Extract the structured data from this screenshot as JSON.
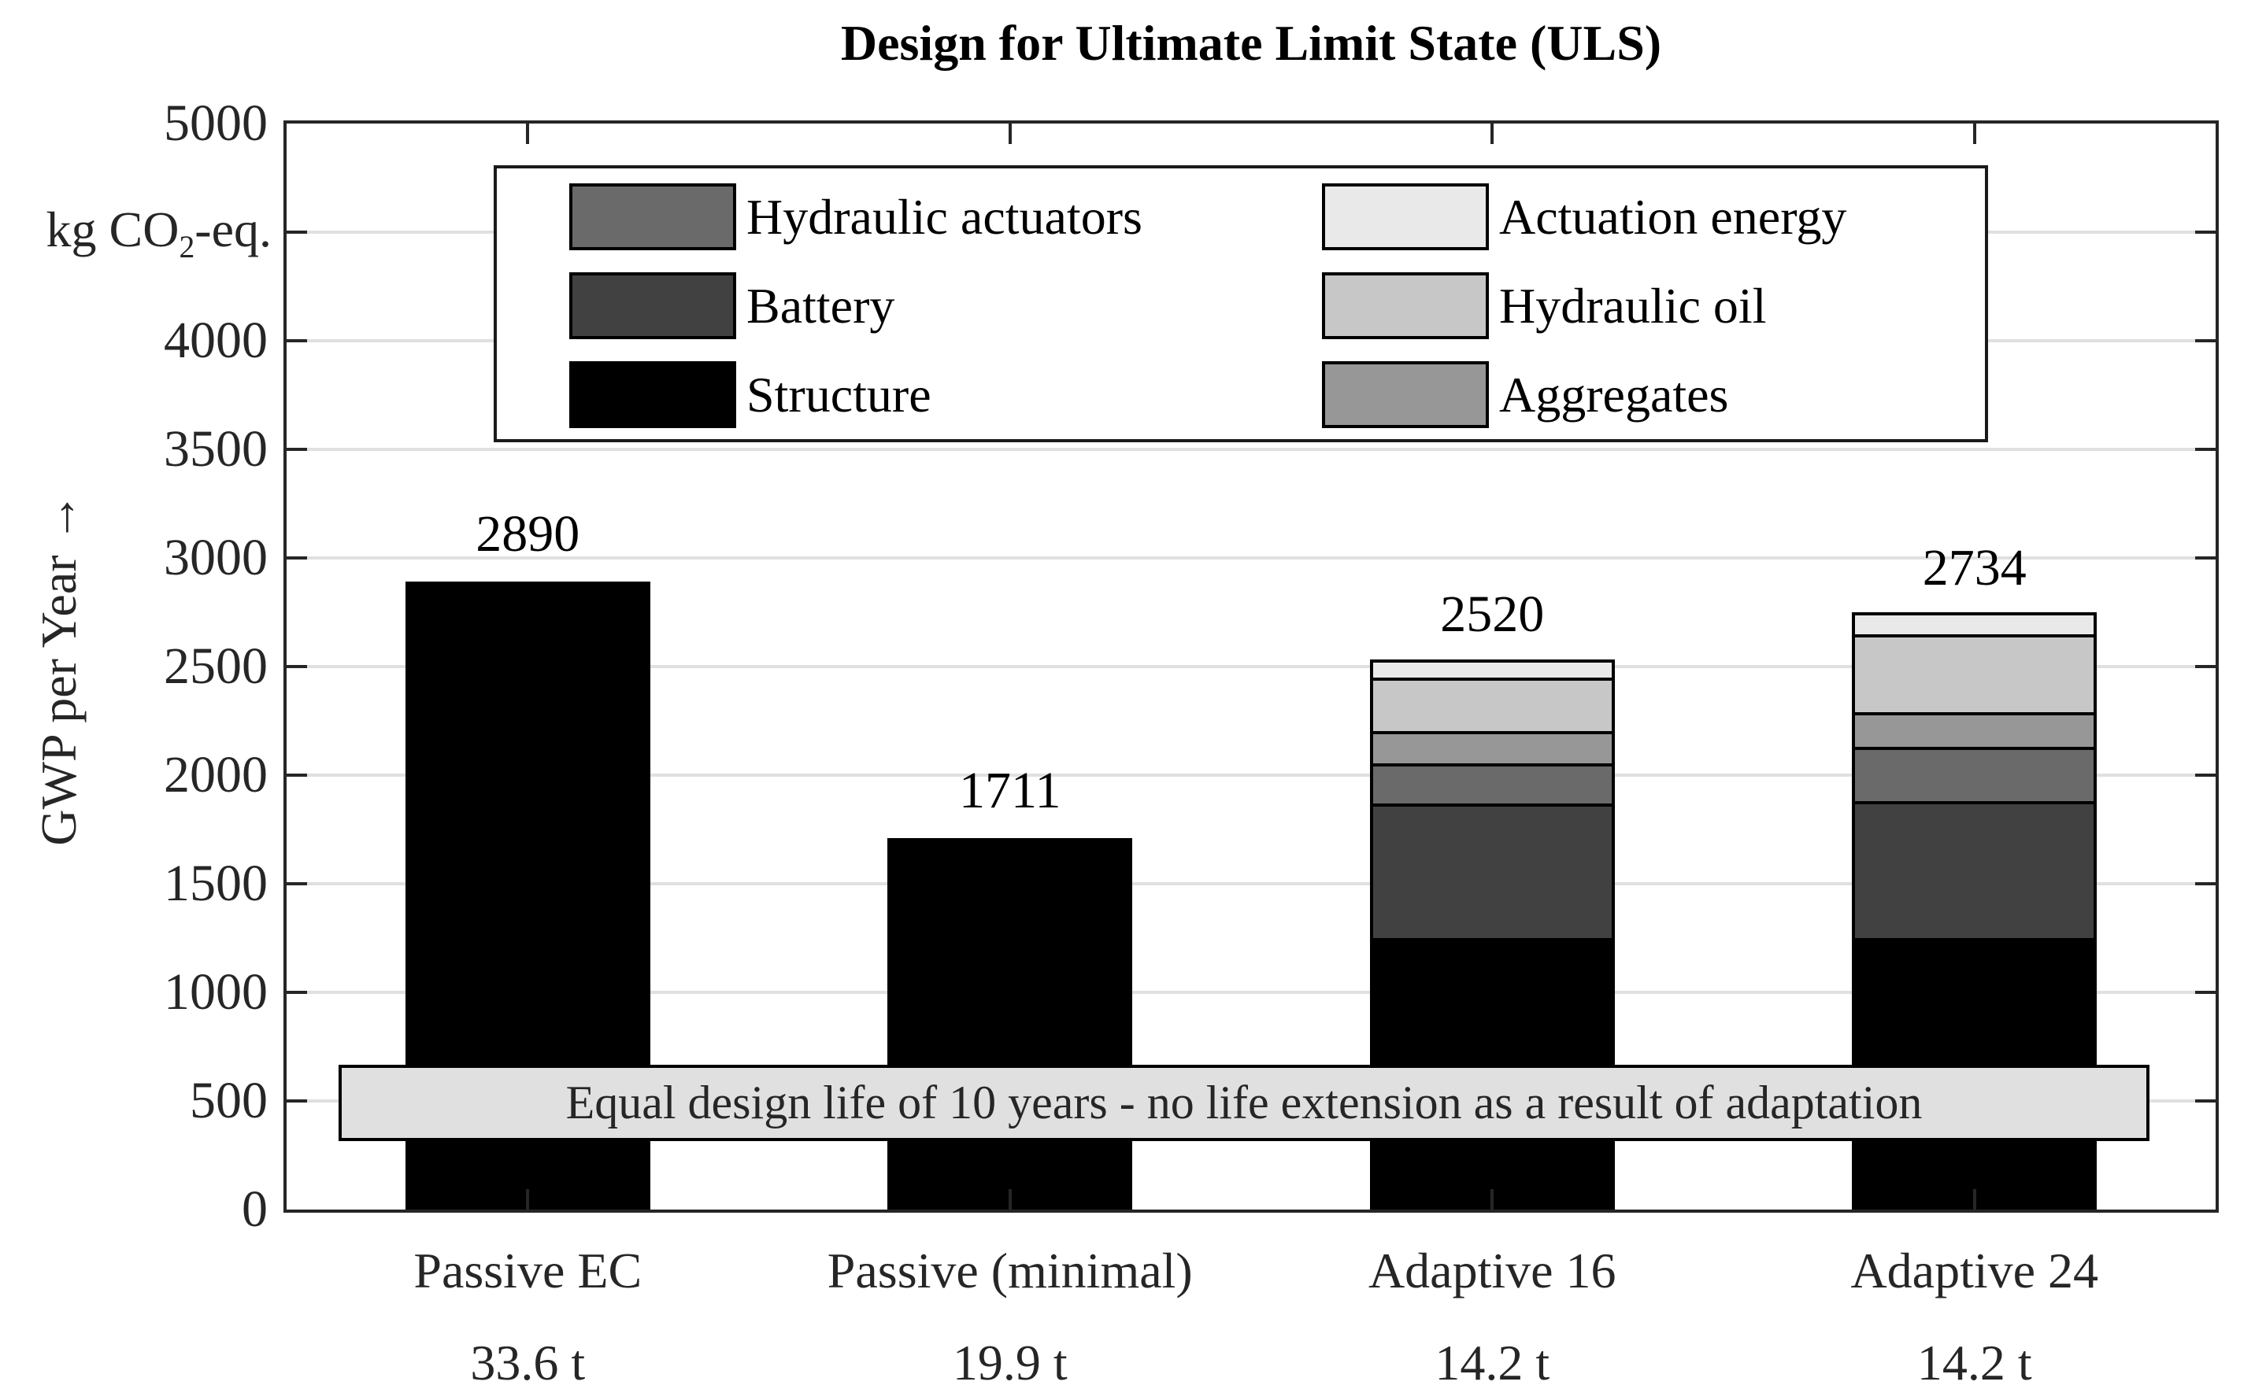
{
  "title": "Design for Ultimate Limit State (ULS)",
  "y_axis": {
    "unit_label": {
      "prefix": "kg CO",
      "sub": "2",
      "suffix": "-eq."
    },
    "axis_label": "GWP per Year",
    "axis_label_arrow": "→",
    "min": 0,
    "max": 5000,
    "tick_step": 500,
    "tick_labels": [
      "0",
      "500",
      "1000",
      "1500",
      "2000",
      "2500",
      "3000",
      "3500",
      "4000",
      "",
      "5000"
    ]
  },
  "chart_data": {
    "type": "bar",
    "stacked": true,
    "title": "Design for Ultimate Limit State (ULS)",
    "ylabel": "GWP per Year (kg CO2-eq.)",
    "ylim": [
      0,
      5000
    ],
    "grid": true,
    "legend_position": "top-inside",
    "categories": [
      "Passive EC",
      "Passive (minimal)",
      "Adaptive 16",
      "Adaptive 24"
    ],
    "category_sublabels": [
      "33.6 t",
      "19.9 t",
      "14.2 t",
      "14.2 t"
    ],
    "totals": [
      "2890",
      "1711",
      "2520",
      "2734"
    ],
    "series": [
      {
        "name": "Structure",
        "color": "#000000",
        "values": [
          2890,
          1711,
          1235,
          1235
        ]
      },
      {
        "name": "Battery",
        "color": "#414141",
        "values": [
          0,
          0,
          620,
          630
        ]
      },
      {
        "name": "Hydraulic actuators",
        "color": "#6a6a6a",
        "values": [
          0,
          0,
          185,
          250
        ]
      },
      {
        "name": "Aggregates",
        "color": "#979797",
        "values": [
          0,
          0,
          150,
          160
        ]
      },
      {
        "name": "Hydraulic oil",
        "color": "#c7c7c7",
        "values": [
          0,
          0,
          245,
          360
        ]
      },
      {
        "name": "Actuation energy",
        "color": "#e9e9e9",
        "values": [
          0,
          0,
          85,
          99
        ]
      }
    ],
    "annotation": "Equal design life of 10 years - no life extension as a result of adaptation"
  },
  "legend": {
    "columns": [
      [
        "Hydraulic actuators",
        "Battery",
        "Structure"
      ],
      [
        "Actuation energy",
        "Hydraulic oil",
        "Aggregates"
      ]
    ]
  },
  "colors": {
    "axis": "#262626",
    "gridline": "#e0e0e0",
    "banner_bg": "#e0e0e0",
    "segment_border": "#000000"
  }
}
